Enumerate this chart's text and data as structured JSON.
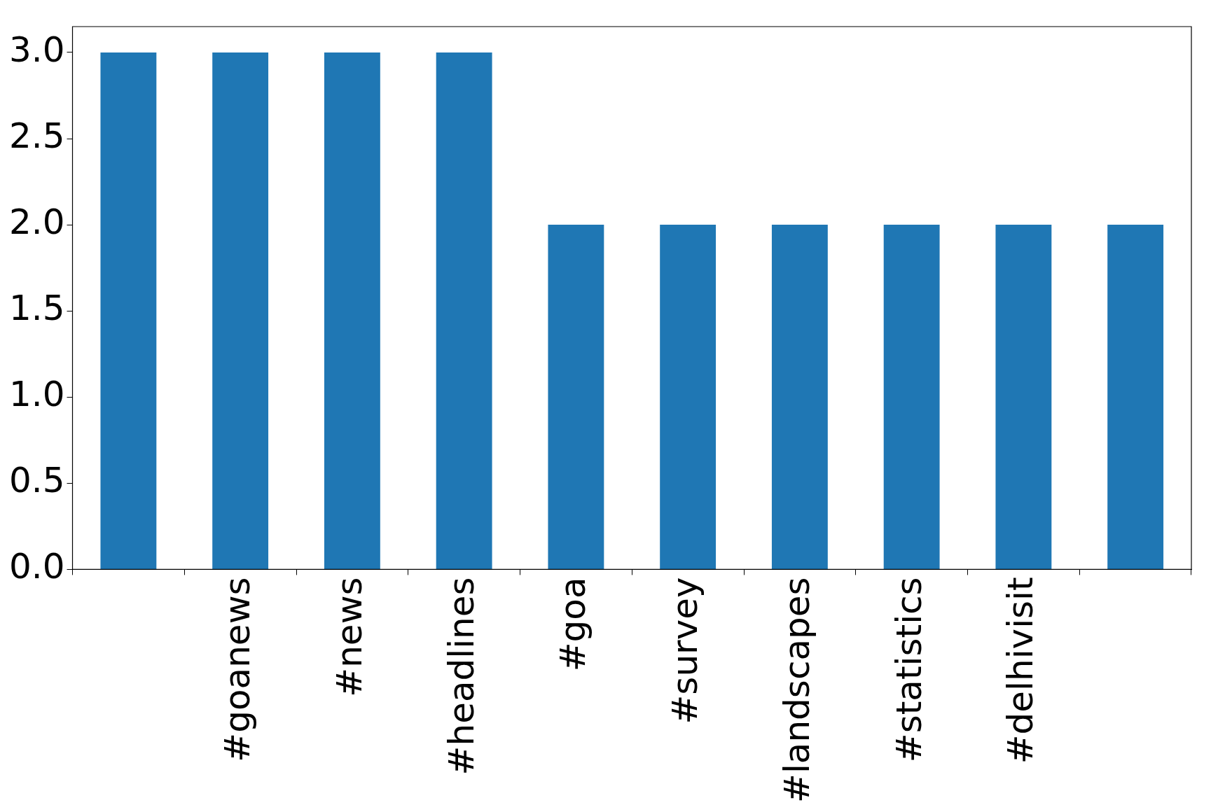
{
  "chart_data": {
    "type": "bar",
    "categories": [
      null,
      "#goanews",
      "#news",
      "#headlines",
      "#goa",
      "#survey",
      "#landscapes",
      "#statistics",
      "#delhivisit",
      null
    ],
    "values": [
      3,
      3,
      3,
      3,
      2,
      2,
      2,
      2,
      2,
      2
    ],
    "color": "#1f77b4",
    "ylim": [
      0,
      3.15
    ],
    "yticks": [
      {
        "value": 0,
        "label": "0.0"
      },
      {
        "value": 0.5,
        "label": "0.5"
      },
      {
        "value": 1,
        "label": "1.0"
      },
      {
        "value": 1.5,
        "label": "1.5"
      },
      {
        "value": 2,
        "label": "2.0"
      },
      {
        "value": 2.5,
        "label": "2.5"
      },
      {
        "value": 3,
        "label": "3.0"
      }
    ],
    "grid": false,
    "legend": false
  }
}
